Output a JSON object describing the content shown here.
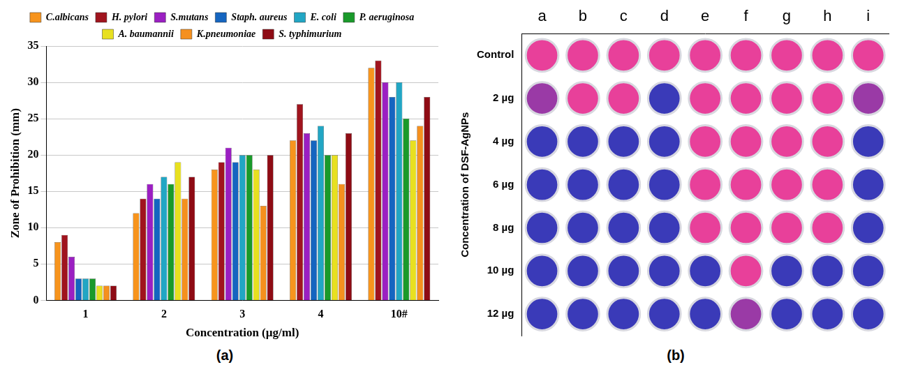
{
  "chart_data": [
    {
      "type": "bar",
      "panel": "(a)",
      "x_label": "Concentration (µg/ml)",
      "y_label": "Zone of Prohibition (mm)",
      "categories": [
        "1",
        "2",
        "3",
        "4",
        "10#"
      ],
      "series": [
        {
          "name": "C.albicans",
          "color": "#f7941d",
          "values": [
            8,
            12,
            18,
            22,
            32
          ]
        },
        {
          "name": "H. pylori",
          "color": "#a0141e",
          "values": [
            9,
            14,
            19,
            27,
            33
          ]
        },
        {
          "name": "S.mutans",
          "color": "#9b1fc2",
          "values": [
            6,
            16,
            21,
            23,
            30
          ]
        },
        {
          "name": "Staph. aureus",
          "color": "#1565c0",
          "values": [
            3,
            14,
            19,
            22,
            28
          ]
        },
        {
          "name": "E. coli",
          "color": "#22a6c4",
          "values": [
            3,
            17,
            20,
            24,
            30
          ]
        },
        {
          "name": "P. aeruginosa",
          "color": "#1a9a2a",
          "values": [
            3,
            16,
            20,
            20,
            25
          ]
        },
        {
          "name": "A. baumannii",
          "color": "#e8e020",
          "values": [
            2,
            19,
            18,
            20,
            22
          ]
        },
        {
          "name": "K.pneumoniae",
          "color": "#f5901e",
          "values": [
            2,
            14,
            13,
            16,
            24
          ]
        },
        {
          "name": "S. typhimurium",
          "color": "#8e0b14",
          "values": [
            2,
            17,
            20,
            23,
            28
          ]
        }
      ],
      "ylim": [
        0,
        35
      ],
      "yticks": [
        0,
        5,
        10,
        15,
        20,
        25,
        30,
        35
      ],
      "grid": true,
      "legend": "top"
    },
    {
      "type": "well_plate",
      "panel": "(b)",
      "y_label": "Concentration of DSF-AgNPs",
      "columns": [
        "a",
        "b",
        "c",
        "d",
        "e",
        "f",
        "g",
        "h",
        "i"
      ],
      "rows": [
        "Control",
        "2 µg",
        "4 µg",
        "6 µg",
        "8 µg",
        "10 µg",
        "12 µg"
      ],
      "cells": [
        [
          "#e8409a",
          "#e8409a",
          "#e8409a",
          "#e8409a",
          "#e8409a",
          "#e8409a",
          "#e8409a",
          "#e8409a",
          "#e8409a"
        ],
        [
          "#9a3aa6",
          "#e8409a",
          "#e8409a",
          "#3a3ab8",
          "#e8409a",
          "#e8409a",
          "#e8409a",
          "#e8409a",
          "#9a3aa6"
        ],
        [
          "#3a3ab8",
          "#3a3ab8",
          "#3a3ab8",
          "#3a3ab8",
          "#e8409a",
          "#e8409a",
          "#e8409a",
          "#e8409a",
          "#3a3ab8"
        ],
        [
          "#3a3ab8",
          "#3a3ab8",
          "#3a3ab8",
          "#3a3ab8",
          "#e8409a",
          "#e8409a",
          "#e8409a",
          "#e8409a",
          "#3a3ab8"
        ],
        [
          "#3a3ab8",
          "#3a3ab8",
          "#3a3ab8",
          "#3a3ab8",
          "#e8409a",
          "#e8409a",
          "#e8409a",
          "#e8409a",
          "#3a3ab8"
        ],
        [
          "#3a3ab8",
          "#3a3ab8",
          "#3a3ab8",
          "#3a3ab8",
          "#3a3ab8",
          "#e8409a",
          "#3a3ab8",
          "#3a3ab8",
          "#3a3ab8"
        ],
        [
          "#3a3ab8",
          "#3a3ab8",
          "#3a3ab8",
          "#3a3ab8",
          "#3a3ab8",
          "#9a3aa6",
          "#3a3ab8",
          "#3a3ab8",
          "#3a3ab8"
        ]
      ]
    }
  ]
}
